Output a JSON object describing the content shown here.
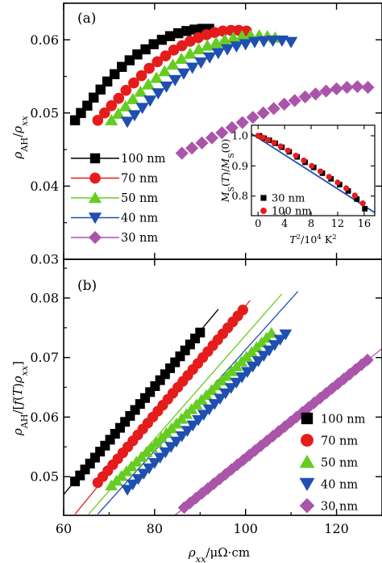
{
  "colors": {
    "100nm": "#000000",
    "70nm": "#e51c1c",
    "50nm": "#66cc22",
    "40nm": "#1f4fb0",
    "30nm": "#aa55aa"
  },
  "chart_data": [
    {
      "panel": "(a)",
      "type": "scatter",
      "ylabel": "ρ_AH/ρ_xx",
      "ylim": [
        0.03,
        0.065
      ],
      "yticks": [
        "0.03",
        "0.04",
        "0.05",
        "0.06"
      ],
      "xlim": [
        60,
        130
      ],
      "legend_placement": "left",
      "series": [
        {
          "name": "100 nm",
          "marker": "square",
          "color": "#000000",
          "x": [
            62.5,
            63.8,
            65.2,
            66.6,
            68.1,
            69.6,
            71.2,
            72.8,
            74.5,
            76.2,
            78.0,
            79.8,
            81.6,
            83.4,
            85.2,
            87.0,
            88.8,
            90.5,
            92.0
          ],
          "y": [
            0.049,
            0.05,
            0.051,
            0.0521,
            0.0532,
            0.0543,
            0.0553,
            0.0563,
            0.0572,
            0.058,
            0.0587,
            0.0594,
            0.06,
            0.0605,
            0.0609,
            0.0612,
            0.0614,
            0.0615,
            0.0615
          ]
        },
        {
          "name": "70 nm",
          "marker": "circle",
          "color": "#e51c1c",
          "x": [
            67.5,
            69.0,
            70.5,
            72.1,
            73.7,
            75.4,
            77.1,
            78.8,
            80.6,
            82.4,
            84.2,
            86.0,
            87.8,
            89.6,
            91.4,
            93.2,
            95.0,
            96.8,
            98.5,
            100.2
          ],
          "y": [
            0.049,
            0.05,
            0.051,
            0.052,
            0.0531,
            0.0541,
            0.0551,
            0.0561,
            0.057,
            0.0578,
            0.0586,
            0.0592,
            0.0598,
            0.0603,
            0.0607,
            0.061,
            0.0612,
            0.0613,
            0.0613,
            0.0612
          ]
        },
        {
          "name": "50 nm",
          "marker": "triangle-up",
          "color": "#66cc22",
          "x": [
            70.5,
            72.0,
            73.6,
            75.2,
            76.9,
            78.6,
            80.4,
            82.2,
            84.0,
            85.9,
            87.8,
            89.7,
            91.6,
            93.5,
            95.4,
            97.3,
            99.2,
            101.1,
            103.0,
            104.8,
            106.5
          ],
          "y": [
            0.049,
            0.0499,
            0.0509,
            0.0519,
            0.0529,
            0.0539,
            0.0548,
            0.0557,
            0.0566,
            0.0574,
            0.0581,
            0.0587,
            0.0592,
            0.0596,
            0.06,
            0.0603,
            0.0605,
            0.0606,
            0.0606,
            0.0605,
            0.0603
          ]
        },
        {
          "name": "40 nm",
          "marker": "triangle-down",
          "color": "#1f4fb0",
          "x": [
            74.0,
            75.6,
            77.3,
            79.0,
            80.8,
            82.6,
            84.5,
            86.4,
            88.3,
            90.2,
            92.1,
            94.0,
            96.0,
            98.0,
            100.0,
            102.0,
            104.0,
            106.0,
            108.0,
            110.0
          ],
          "y": [
            0.0488,
            0.0497,
            0.0507,
            0.0517,
            0.0527,
            0.0536,
            0.0545,
            0.0554,
            0.0562,
            0.0569,
            0.0576,
            0.0582,
            0.0587,
            0.0591,
            0.0594,
            0.0597,
            0.0598,
            0.0599,
            0.0599,
            0.0597
          ]
        },
        {
          "name": "30 nm",
          "marker": "diamond",
          "color": "#aa55aa",
          "x": [
            86.0,
            88.2,
            90.4,
            92.6,
            94.8,
            97.0,
            99.3,
            101.6,
            103.9,
            106.2,
            108.5,
            110.8,
            113.1,
            115.4,
            117.7,
            120.0,
            122.3,
            124.6,
            126.9
          ],
          "y": [
            0.0445,
            0.0452,
            0.0459,
            0.0466,
            0.0473,
            0.048,
            0.0487,
            0.0494,
            0.05,
            0.0506,
            0.0512,
            0.0517,
            0.0522,
            0.0526,
            0.053,
            0.0533,
            0.0535,
            0.0536,
            0.0535
          ]
        }
      ],
      "inset": {
        "type": "scatter",
        "xlabel": "T^2/10^4 K^2",
        "ylabel": "M_S(T)/M_S(0)",
        "xlim": [
          -1,
          17.6
        ],
        "ylim": [
          0.735,
          1.035
        ],
        "xticks": [
          "0",
          "4",
          "8",
          "12",
          "16"
        ],
        "yticks": [
          "0.8",
          "0.9",
          "1.0"
        ],
        "fit_line": {
          "x": [
            -1,
            17.6
          ],
          "y": [
            1.007,
            0.745
          ]
        },
        "series": [
          {
            "name": "30 nm",
            "marker": "square",
            "color": "#000000",
            "x": [
              0.2,
              0.9,
              1.7,
              2.6,
              3.6,
              4.7,
              5.9,
              7.1,
              8.4,
              9.7,
              11.0,
              12.3,
              13.6,
              14.9,
              16.1
            ],
            "y": [
              1.0,
              0.992,
              0.985,
              0.975,
              0.962,
              0.947,
              0.93,
              0.912,
              0.895,
              0.876,
              0.857,
              0.838,
              0.817,
              0.79,
              0.758
            ]
          },
          {
            "name": "100 nm",
            "marker": "circle",
            "color": "#e51c1c",
            "x": [
              0.0,
              0.7,
              1.5,
              2.4,
              3.4,
              4.5,
              5.7,
              6.9,
              8.1,
              9.4,
              10.7,
              12.0,
              13.3,
              14.6,
              15.8
            ],
            "y": [
              1.0,
              0.994,
              0.986,
              0.977,
              0.965,
              0.951,
              0.934,
              0.918,
              0.9,
              0.882,
              0.864,
              0.845,
              0.826,
              0.802,
              0.776
            ]
          }
        ]
      }
    },
    {
      "panel": "(b)",
      "type": "scatter",
      "xlabel": "ρ_xx/μΩ·cm",
      "ylabel": "ρ_AH/[f(T)ρ_xx]",
      "xlim": [
        60,
        130
      ],
      "ylim": [
        0.0435,
        0.0865
      ],
      "xticks": [
        "60",
        "80",
        "100",
        "120"
      ],
      "yticks": [
        "0.05",
        "0.06",
        "0.07",
        "0.08"
      ],
      "legend_placement": "right",
      "series": [
        {
          "name": "100 nm",
          "marker": "square",
          "color": "#000000",
          "x": [
            62.5,
            63.6,
            64.7,
            65.8,
            66.9,
            68.0,
            69.1,
            70.2,
            71.3,
            72.4,
            73.5,
            74.6,
            75.7,
            76.8,
            77.9,
            79.0,
            80.1,
            81.2,
            82.3,
            83.4,
            84.5,
            85.6,
            86.7,
            87.8,
            88.9,
            90.0
          ],
          "y": [
            0.0492,
            0.0502,
            0.0512,
            0.0522,
            0.0532,
            0.0542,
            0.0552,
            0.0562,
            0.0572,
            0.0582,
            0.0592,
            0.0602,
            0.0612,
            0.0622,
            0.0632,
            0.0642,
            0.0652,
            0.0662,
            0.0672,
            0.0682,
            0.0692,
            0.0702,
            0.0712,
            0.0722,
            0.0732,
            0.0742
          ],
          "fit": {
            "x": [
              60,
              94
            ],
            "y": [
              0.047,
              0.0781
            ]
          }
        },
        {
          "name": "70 nm",
          "marker": "circle",
          "color": "#e51c1c",
          "x": [
            67.5,
            68.6,
            69.7,
            70.8,
            71.9,
            73.0,
            74.1,
            75.2,
            76.3,
            77.4,
            78.5,
            79.6,
            80.7,
            81.8,
            82.9,
            84.0,
            85.1,
            86.2,
            87.3,
            88.4,
            89.5,
            90.6,
            91.7,
            92.8,
            93.9,
            95.0,
            96.1,
            97.2,
            98.3,
            99.4
          ],
          "y": [
            0.049,
            0.05,
            0.051,
            0.052,
            0.053,
            0.054,
            0.055,
            0.056,
            0.057,
            0.058,
            0.059,
            0.06,
            0.061,
            0.062,
            0.063,
            0.064,
            0.065,
            0.066,
            0.067,
            0.068,
            0.069,
            0.07,
            0.071,
            0.072,
            0.073,
            0.074,
            0.075,
            0.076,
            0.077,
            0.078
          ],
          "fit": {
            "x": [
              62.5,
              101
            ],
            "y": [
              0.0437,
              0.0796
            ]
          }
        },
        {
          "name": "50 nm",
          "marker": "triangle-up",
          "color": "#66cc22",
          "x": [
            70.5,
            71.6,
            72.7,
            73.8,
            74.9,
            76.0,
            77.1,
            78.2,
            79.3,
            80.4,
            81.5,
            82.6,
            83.7,
            84.8,
            85.9,
            87.0,
            88.1,
            89.2,
            90.3,
            91.4,
            92.5,
            93.6,
            94.7,
            95.8,
            96.9,
            98.0,
            99.1,
            100.2,
            101.3,
            102.4,
            103.5,
            104.6,
            105.7
          ],
          "y": [
            0.0485,
            0.0493,
            0.0501,
            0.0509,
            0.0517,
            0.0525,
            0.0533,
            0.0541,
            0.0549,
            0.0557,
            0.0565,
            0.0573,
            0.0581,
            0.0589,
            0.0597,
            0.0605,
            0.0613,
            0.0621,
            0.0629,
            0.0637,
            0.0645,
            0.0653,
            0.0661,
            0.0669,
            0.0677,
            0.0685,
            0.0693,
            0.0701,
            0.0709,
            0.0717,
            0.0725,
            0.0733,
            0.0741
          ],
          "fit": {
            "x": [
              65.5,
              108
            ],
            "y": [
              0.0437,
              0.0807
            ]
          }
        },
        {
          "name": "40 nm",
          "marker": "triangle-down",
          "color": "#1f4fb0",
          "x": [
            74.0,
            75.2,
            76.4,
            77.6,
            78.8,
            80.0,
            81.2,
            82.4,
            83.6,
            84.8,
            86.0,
            87.2,
            88.4,
            89.6,
            90.8,
            92.0,
            93.2,
            94.4,
            95.6,
            96.8,
            98.0,
            99.2,
            100.4,
            101.6,
            102.8,
            104.0,
            105.2,
            106.4,
            107.6,
            108.8
          ],
          "y": [
            0.0478,
            0.0487,
            0.0496,
            0.0505,
            0.0514,
            0.0523,
            0.0532,
            0.0541,
            0.055,
            0.0559,
            0.0568,
            0.0577,
            0.0586,
            0.0595,
            0.0604,
            0.0613,
            0.0622,
            0.0631,
            0.064,
            0.0649,
            0.0658,
            0.0667,
            0.0676,
            0.0685,
            0.0694,
            0.0703,
            0.0712,
            0.0721,
            0.073,
            0.0739
          ],
          "fit": {
            "x": [
              67.5,
              111.5
            ],
            "y": [
              0.0437,
              0.0811
            ]
          }
        },
        {
          "name": "30 nm",
          "marker": "diamond",
          "color": "#aa55aa",
          "x": [
            86.5,
            87.8,
            89.1,
            90.4,
            91.7,
            93.0,
            94.3,
            95.6,
            96.9,
            98.2,
            99.5,
            100.8,
            102.1,
            103.4,
            104.7,
            106.0,
            107.3,
            108.6,
            109.9,
            111.2,
            112.5,
            113.8,
            115.1,
            116.4,
            117.7,
            119.0,
            120.3,
            121.6,
            122.9,
            124.2,
            125.5,
            126.8
          ],
          "y": [
            0.0448,
            0.0456,
            0.0464,
            0.0472,
            0.048,
            0.0488,
            0.0496,
            0.0504,
            0.0512,
            0.052,
            0.0528,
            0.0536,
            0.0544,
            0.0552,
            0.056,
            0.0568,
            0.0576,
            0.0584,
            0.0592,
            0.06,
            0.0608,
            0.0616,
            0.0624,
            0.0632,
            0.064,
            0.0648,
            0.0656,
            0.0664,
            0.0672,
            0.068,
            0.0688,
            0.0696
          ],
          "fit": {
            "x": [
              82,
              130
            ],
            "y": [
              0.042,
              0.0715
            ]
          }
        }
      ]
    }
  ]
}
